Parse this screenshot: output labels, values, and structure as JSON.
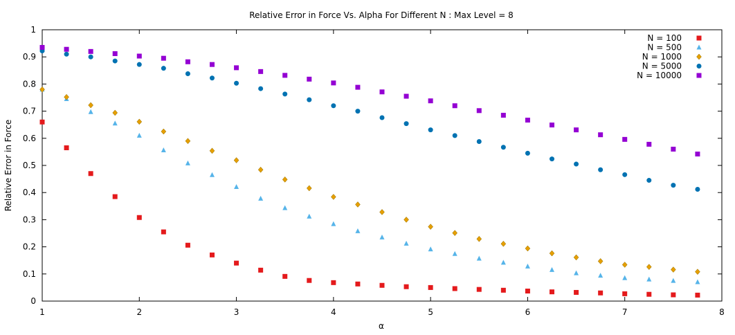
{
  "chart_data": {
    "type": "scatter",
    "title": "Relative Error in Force Vs. Alpha For Different N : Max Level = 8",
    "xlabel": "α",
    "ylabel": "Relative Error in Force",
    "xlim": [
      1,
      8
    ],
    "ylim": [
      0,
      1
    ],
    "xticks": [
      1,
      2,
      3,
      4,
      5,
      6,
      7,
      8
    ],
    "yticks": [
      0,
      0.1,
      0.2,
      0.3,
      0.4,
      0.5,
      0.6,
      0.7,
      0.8,
      0.9,
      1
    ],
    "xtick_labels": [
      "1",
      "2",
      "3",
      "4",
      "5",
      "6",
      "7",
      "8"
    ],
    "ytick_labels": [
      "0",
      "0.1",
      "0.2",
      "0.3",
      "0.4",
      "0.5",
      "0.6",
      "0.7",
      "0.8",
      "0.9",
      "1"
    ],
    "grid": false,
    "legend_position": "top-right",
    "x": [
      1,
      1.25,
      1.5,
      1.75,
      2,
      2.25,
      2.5,
      2.75,
      3,
      3.25,
      3.5,
      3.75,
      4,
      4.25,
      4.5,
      4.75,
      5,
      5.25,
      5.5,
      5.75,
      6,
      6.25,
      6.5,
      6.75,
      7,
      7.25,
      7.5,
      7.75
    ],
    "series": [
      {
        "name": "N = 100",
        "color": "#e41a1c",
        "marker": "square",
        "values": [
          0.66,
          0.565,
          0.47,
          0.385,
          0.308,
          0.255,
          0.206,
          0.17,
          0.14,
          0.114,
          0.091,
          0.076,
          0.068,
          0.063,
          0.058,
          0.053,
          0.05,
          0.046,
          0.043,
          0.04,
          0.037,
          0.034,
          0.032,
          0.03,
          0.027,
          0.025,
          0.023,
          0.022
        ]
      },
      {
        "name": "N = 500",
        "color": "#56b4e9",
        "marker": "triangle",
        "values": [
          0.78,
          0.745,
          0.697,
          0.655,
          0.61,
          0.556,
          0.508,
          0.465,
          0.421,
          0.378,
          0.343,
          0.312,
          0.284,
          0.258,
          0.235,
          0.212,
          0.191,
          0.174,
          0.157,
          0.142,
          0.128,
          0.115,
          0.103,
          0.094,
          0.085,
          0.08,
          0.075,
          0.07
        ]
      },
      {
        "name": "N = 1000",
        "color": "#e69f00",
        "marker": "diamond",
        "values": [
          0.78,
          0.752,
          0.722,
          0.694,
          0.661,
          0.625,
          0.59,
          0.554,
          0.519,
          0.484,
          0.448,
          0.416,
          0.384,
          0.356,
          0.328,
          0.3,
          0.274,
          0.251,
          0.229,
          0.211,
          0.194,
          0.176,
          0.161,
          0.147,
          0.134,
          0.126,
          0.116,
          0.108
        ]
      },
      {
        "name": "N = 5000",
        "color": "#0072b2",
        "marker": "circle",
        "values": [
          0.922,
          0.91,
          0.9,
          0.885,
          0.872,
          0.858,
          0.838,
          0.822,
          0.803,
          0.783,
          0.763,
          0.742,
          0.72,
          0.7,
          0.676,
          0.654,
          0.631,
          0.61,
          0.588,
          0.567,
          0.545,
          0.524,
          0.505,
          0.484,
          0.466,
          0.445,
          0.427,
          0.412
        ]
      },
      {
        "name": "N = 10000",
        "color": "#9400d3",
        "marker": "square",
        "values": [
          0.935,
          0.928,
          0.92,
          0.912,
          0.903,
          0.895,
          0.882,
          0.872,
          0.86,
          0.846,
          0.832,
          0.818,
          0.804,
          0.788,
          0.771,
          0.755,
          0.738,
          0.72,
          0.702,
          0.685,
          0.667,
          0.649,
          0.631,
          0.613,
          0.596,
          0.578,
          0.56,
          0.542
        ]
      }
    ]
  }
}
